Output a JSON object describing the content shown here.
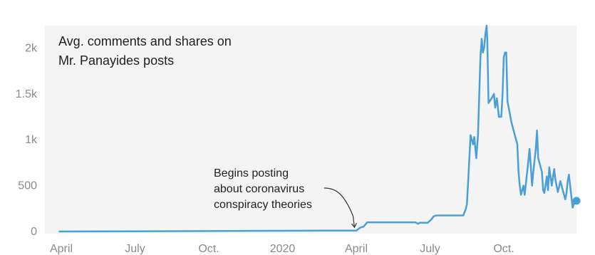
{
  "chart_data": {
    "type": "line",
    "title_lines": [
      "Avg. comments and shares on",
      "Mr. Panayides posts"
    ],
    "xlabel": "",
    "ylabel": "",
    "ylim": [
      0,
      2300
    ],
    "grid": false,
    "y_ticks": [
      {
        "value": 0,
        "label": "0"
      },
      {
        "value": 500,
        "label": "500"
      },
      {
        "value": 1000,
        "label": "1k"
      },
      {
        "value": 1500,
        "label": "1.5k"
      },
      {
        "value": 2000,
        "label": "2k"
      }
    ],
    "x_ticks": [
      {
        "label": "April",
        "month": 0
      },
      {
        "label": "July",
        "month": 3
      },
      {
        "label": "Oct.",
        "month": 6
      },
      {
        "label": "2020",
        "month": 9
      },
      {
        "label": "April",
        "month": 12
      },
      {
        "label": "July",
        "month": 15
      },
      {
        "label": "Oct.",
        "month": 18
      }
    ],
    "series": [
      {
        "color": "#4a9fd6",
        "points": [
          [
            -0.1,
            0
          ],
          [
            3,
            2
          ],
          [
            6,
            5
          ],
          [
            9,
            8
          ],
          [
            10.5,
            10
          ],
          [
            12,
            10
          ],
          [
            12.15,
            40
          ],
          [
            12.3,
            55
          ],
          [
            12.45,
            100
          ],
          [
            13.4,
            100
          ],
          [
            14.4,
            100
          ],
          [
            14.5,
            85
          ],
          [
            14.6,
            95
          ],
          [
            14.9,
            95
          ],
          [
            15.05,
            130
          ],
          [
            15.15,
            165
          ],
          [
            15.25,
            175
          ],
          [
            16.2,
            175
          ],
          [
            16.35,
            175
          ],
          [
            16.45,
            240
          ],
          [
            16.5,
            300
          ],
          [
            16.6,
            800
          ],
          [
            16.65,
            1050
          ],
          [
            16.75,
            950
          ],
          [
            16.8,
            1030
          ],
          [
            16.88,
            800
          ],
          [
            16.95,
            1050
          ],
          [
            17.05,
            1900
          ],
          [
            17.1,
            2100
          ],
          [
            17.15,
            1950
          ],
          [
            17.2,
            2000
          ],
          [
            17.25,
            2150
          ],
          [
            17.3,
            2280
          ],
          [
            17.33,
            2080
          ],
          [
            17.38,
            1400
          ],
          [
            17.5,
            1450
          ],
          [
            17.6,
            1500
          ],
          [
            17.65,
            1350
          ],
          [
            17.72,
            1450
          ],
          [
            17.8,
            1250
          ],
          [
            17.9,
            1250
          ],
          [
            17.95,
            1500
          ],
          [
            18.0,
            1900
          ],
          [
            18.05,
            1950
          ],
          [
            18.1,
            1950
          ],
          [
            18.15,
            1420
          ],
          [
            18.2,
            1350
          ],
          [
            18.3,
            1200
          ],
          [
            18.4,
            1100
          ],
          [
            18.45,
            1050
          ],
          [
            18.55,
            950
          ],
          [
            18.6,
            650
          ],
          [
            18.65,
            500
          ],
          [
            18.7,
            400
          ],
          [
            18.8,
            500
          ],
          [
            18.85,
            400
          ],
          [
            18.95,
            650
          ],
          [
            19.05,
            900
          ],
          [
            19.1,
            700
          ],
          [
            19.15,
            500
          ],
          [
            19.2,
            650
          ],
          [
            19.3,
            900
          ],
          [
            19.35,
            1100
          ],
          [
            19.4,
            800
          ],
          [
            19.45,
            750
          ],
          [
            19.55,
            650
          ],
          [
            19.6,
            450
          ],
          [
            19.65,
            420
          ],
          [
            19.75,
            600
          ],
          [
            19.8,
            450
          ],
          [
            19.85,
            700
          ],
          [
            19.95,
            500
          ],
          [
            20.05,
            680
          ],
          [
            20.1,
            560
          ],
          [
            20.2,
            430
          ],
          [
            20.3,
            550
          ],
          [
            20.4,
            450
          ],
          [
            20.5,
            350
          ],
          [
            20.55,
            420
          ],
          [
            20.6,
            550
          ],
          [
            20.65,
            620
          ],
          [
            20.7,
            500
          ],
          [
            20.75,
            380
          ],
          [
            20.8,
            260
          ],
          [
            20.85,
            300
          ],
          [
            20.95,
            350
          ],
          [
            21.05,
            330
          ],
          [
            21.15,
            335
          ]
        ],
        "end_marker": true
      }
    ],
    "annotations": [
      {
        "lines": [
          "Begins posting",
          "about coronavirus",
          "conspiracy theories"
        ],
        "target_month": 12.1,
        "target_value": 30
      }
    ]
  }
}
